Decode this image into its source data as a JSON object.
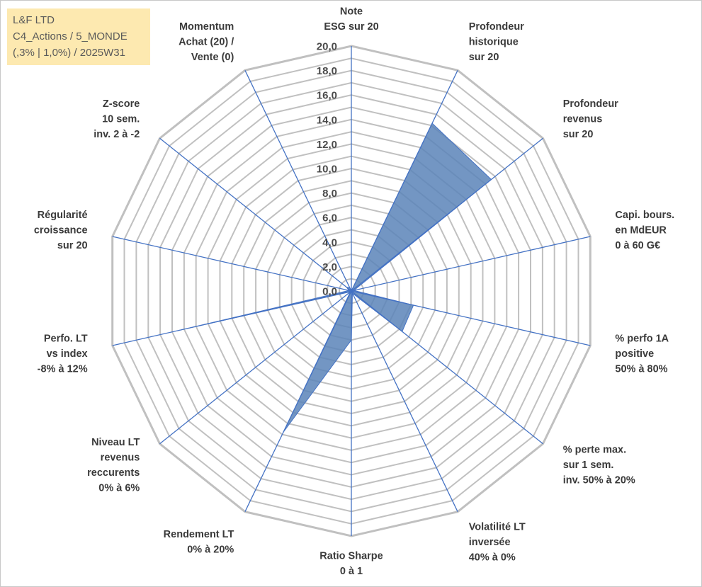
{
  "info_box": {
    "line1": "L&F LTD",
    "line2": "C4_Actions / 5_MONDE",
    "line3": "(,3% | 1,0%) / 2025W31"
  },
  "colors": {
    "grid": "#c0c0c0",
    "spoke": "#4472c4",
    "area_fill": "#5b84b8",
    "area_stroke": "#4472c4",
    "info_box_bg": "#fde9b0"
  },
  "chart_data": {
    "type": "radar",
    "title": "",
    "range": [
      0,
      20
    ],
    "tick_step": 1,
    "grid": true,
    "tick_labels": [
      "0,0",
      "2,0",
      "4,0",
      "6,0",
      "8,0",
      "10,0",
      "12,0",
      "14,0",
      "16,0",
      "18,0",
      "20,0"
    ],
    "axes": [
      {
        "label": [
          "Note",
          "ESG sur 20"
        ]
      },
      {
        "label": [
          "Profondeur",
          "historique",
          "sur 20"
        ]
      },
      {
        "label": [
          "Profondeur",
          "revenus",
          "sur 20"
        ]
      },
      {
        "label": [
          "Capi. bours.",
          "en MdEUR",
          "0 à 60 G€"
        ]
      },
      {
        "label": [
          "% perfo 1A",
          "positive",
          "50% à 80%"
        ]
      },
      {
        "label": [
          "% perte max.",
          "sur 1 sem.",
          "inv. 50% à 20%"
        ]
      },
      {
        "label": [
          "Volatilité LT",
          "inversée",
          "40% à 0%"
        ]
      },
      {
        "label": [
          "Ratio Sharpe",
          "0 à 1"
        ]
      },
      {
        "label": [
          "Rendement LT",
          "0% à 20%"
        ]
      },
      {
        "label": [
          "Niveau LT",
          "revenus",
          "reccurents",
          "0% à 6%"
        ]
      },
      {
        "label": [
          "Perfo. LT",
          "vs index",
          "-8% à 12%"
        ]
      },
      {
        "label": [
          "Régularité",
          "croissance",
          "sur 20"
        ]
      },
      {
        "label": [
          "Z-score",
          "10 sem.",
          "inv. 2 à -2"
        ]
      },
      {
        "label": [
          "Momentum",
          "Achat (20) /",
          "Vente (0)"
        ]
      }
    ],
    "series": [
      {
        "values": [
          0,
          15.2,
          14.6,
          0.2,
          5.2,
          5.3,
          0.2,
          4.0,
          12.8,
          0.1,
          14.6,
          0.2,
          0.5,
          0.3
        ]
      }
    ]
  }
}
